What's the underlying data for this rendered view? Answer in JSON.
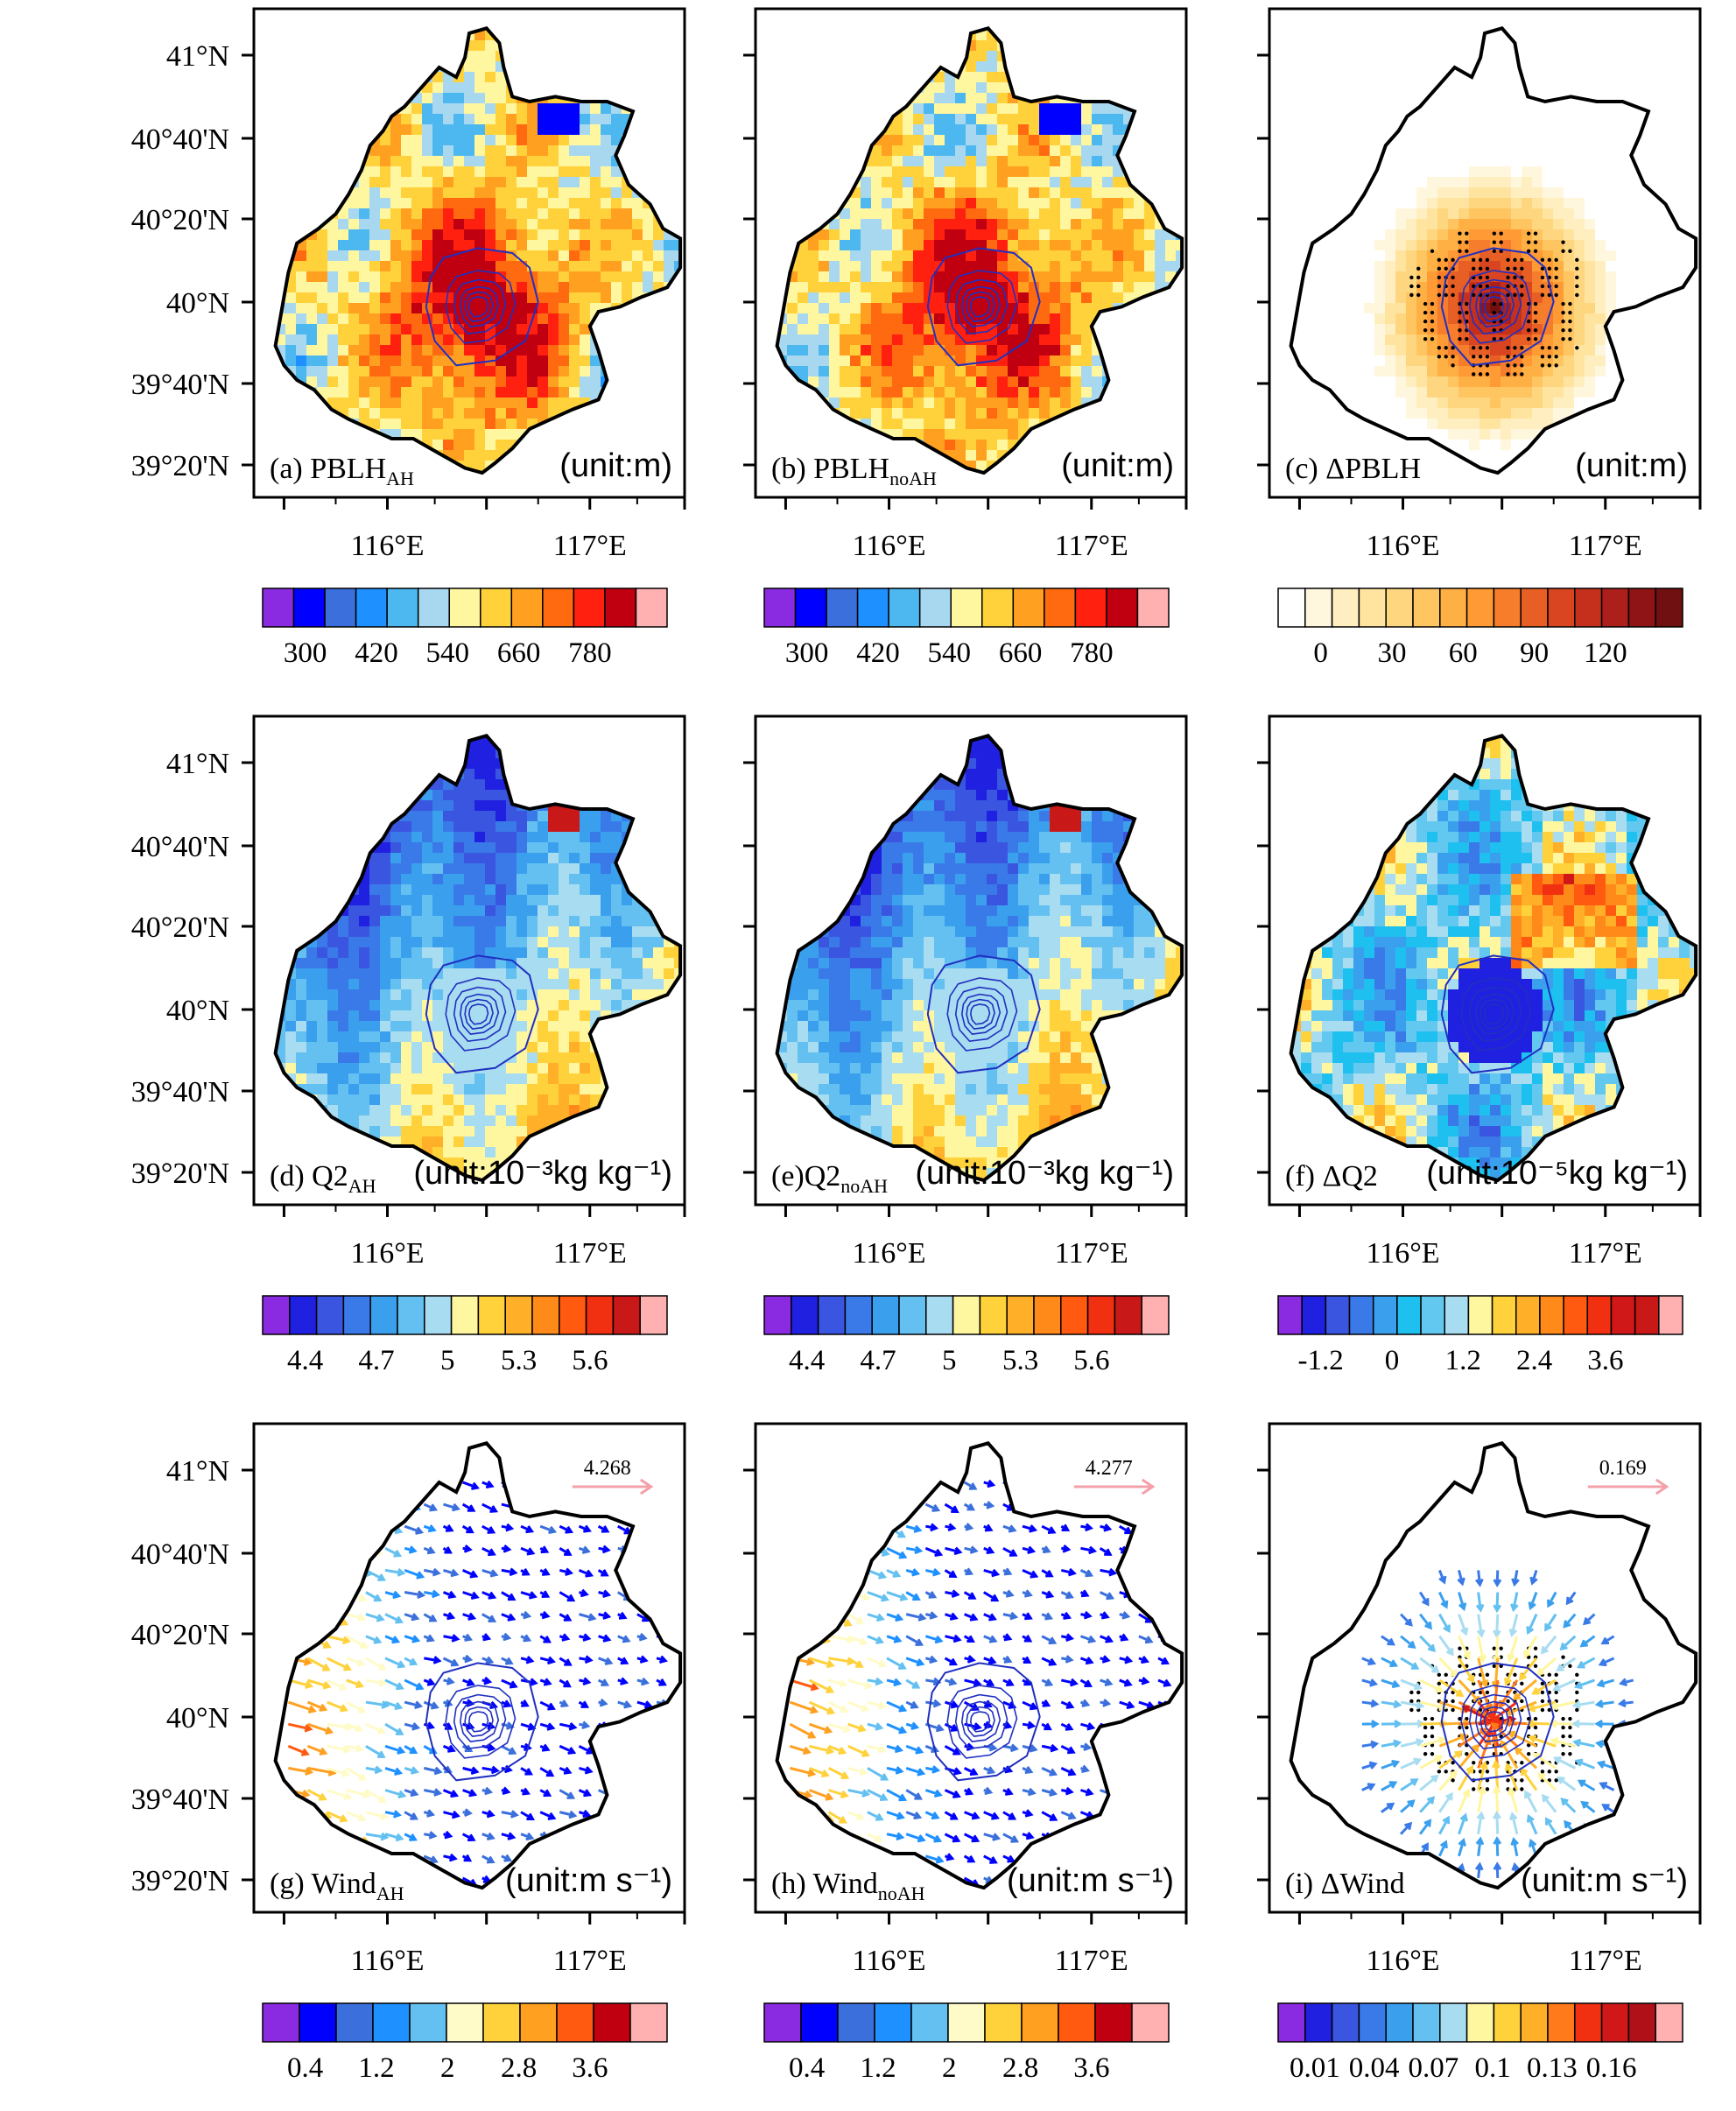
{
  "figure": {
    "y_axis_labels": [
      "41°N",
      "40°40'N",
      "40°20'N",
      "40°N",
      "39°40'N",
      "39°20'N"
    ],
    "x_axis_labels": [
      "116°E",
      "117°E"
    ],
    "panels": [
      {
        "id": "a",
        "caption": "(a) PBLH",
        "sub": "AH",
        "unit": "(unit:m)",
        "field": "pblh",
        "colorbar": "pblh",
        "overlay": "none",
        "stipple": false
      },
      {
        "id": "b",
        "caption": "(b) PBLH",
        "sub": "noAH",
        "unit": "(unit:m)",
        "field": "pblh",
        "colorbar": "pblh",
        "overlay": "none",
        "stipple": false
      },
      {
        "id": "c",
        "caption": "(c) ΔPBLH",
        "sub": "",
        "unit": "(unit:m)",
        "field": "dpblh",
        "colorbar": "dpblh",
        "overlay": "none",
        "stipple": true
      },
      {
        "id": "d",
        "caption": "(d) Q2",
        "sub": "AH",
        "unit": "(unit:10⁻³kg kg⁻¹)",
        "field": "q2",
        "colorbar": "q2",
        "overlay": "none",
        "stipple": false
      },
      {
        "id": "e",
        "caption": "(e)Q2",
        "sub": "noAH",
        "unit": "(unit:10⁻³kg kg⁻¹)",
        "field": "q2",
        "colorbar": "q2",
        "overlay": "none",
        "stipple": false
      },
      {
        "id": "f",
        "caption": "(f) ΔQ2",
        "sub": "",
        "unit": "(unit:10⁻⁵kg kg⁻¹)",
        "field": "dq2",
        "colorbar": "dq2",
        "overlay": "none",
        "stipple": false
      },
      {
        "id": "g",
        "caption": "(g) Wind",
        "sub": "AH",
        "unit": "(unit:m s⁻¹)",
        "field": "none",
        "colorbar": "wind",
        "overlay": "wind",
        "stipple": false,
        "reference_vector": "4.268"
      },
      {
        "id": "h",
        "caption": "(h) Wind",
        "sub": "noAH",
        "unit": "(unit:m s⁻¹)",
        "field": "none",
        "colorbar": "wind",
        "overlay": "wind",
        "stipple": false,
        "reference_vector": "4.277"
      },
      {
        "id": "i",
        "caption": "(i) ΔWind",
        "sub": "",
        "unit": "(unit:m s⁻¹)",
        "field": "none",
        "colorbar": "dwind",
        "overlay": "dwind",
        "stipple": true,
        "reference_vector": "0.169"
      }
    ],
    "colorbars": {
      "pblh": {
        "colors": [
          "#8a2be2",
          "#0000ff",
          "#3a6fdc",
          "#1e90ff",
          "#4db8f0",
          "#a8d8f0",
          "#fff6a0",
          "#ffd23c",
          "#ffa020",
          "#ff6a10",
          "#ff2010",
          "#c00010",
          "#ffb0b0"
        ],
        "labels": [
          "300",
          "420",
          "540",
          "660",
          "780"
        ]
      },
      "dpblh": {
        "colors": [
          "#ffffff",
          "#fff7dd",
          "#ffefc0",
          "#ffe4a0",
          "#ffd680",
          "#ffc560",
          "#ffb045",
          "#ff9a35",
          "#f57d2b",
          "#e85f25",
          "#d84520",
          "#c4301c",
          "#ad1f1a",
          "#8e1416",
          "#701010"
        ],
        "labels": [
          "0",
          "30",
          "60",
          "90",
          "120"
        ]
      },
      "q2": {
        "colors": [
          "#8a2be2",
          "#2020e0",
          "#3a55e0",
          "#3a7ae8",
          "#3aa0ee",
          "#63c0f0",
          "#a8dcf0",
          "#fff6a0",
          "#ffd23c",
          "#ffb028",
          "#ff8a1a",
          "#ff5a10",
          "#f03010",
          "#c81818",
          "#ffb0b0"
        ],
        "labels": [
          "4.4",
          "4.7",
          "5",
          "5.3",
          "5.6"
        ]
      },
      "dq2": {
        "colors": [
          "#8a2be2",
          "#2020e0",
          "#3a55e0",
          "#3a7ae8",
          "#3aa0ee",
          "#1ec0f0",
          "#63c8f0",
          "#a8dcf0",
          "#fff6a0",
          "#ffd23c",
          "#ffb028",
          "#ff8a1a",
          "#ff5a10",
          "#f03010",
          "#d01818",
          "#c81818",
          "#ffb0b0"
        ],
        "labels": [
          "-1.2",
          "0",
          "1.2",
          "2.4",
          "3.6"
        ]
      },
      "wind": {
        "colors": [
          "#8a2be2",
          "#0000ff",
          "#3a6fdc",
          "#1e90ff",
          "#63c0f0",
          "#fffbc8",
          "#ffd23c",
          "#ffa020",
          "#ff5a10",
          "#c00010",
          "#ffb0b0"
        ],
        "labels": [
          "0.4",
          "1.2",
          "2",
          "2.8",
          "3.6"
        ]
      },
      "dwind": {
        "colors": [
          "#8a2be2",
          "#2020e0",
          "#3a55e0",
          "#3a7ae8",
          "#3aa0ee",
          "#63c0f0",
          "#a8dcf0",
          "#fff6a0",
          "#ffd23c",
          "#ffb028",
          "#ff7a1a",
          "#f03010",
          "#d01818",
          "#b01018",
          "#ffb0b0"
        ],
        "labels": [
          "0.01",
          "0.04",
          "0.07",
          "0.1",
          "0.13",
          "0.16"
        ]
      }
    },
    "colors": {
      "outline": "#000000",
      "urban_contour": "#2030c0",
      "reference_arrow": "#f4a0a8"
    }
  }
}
